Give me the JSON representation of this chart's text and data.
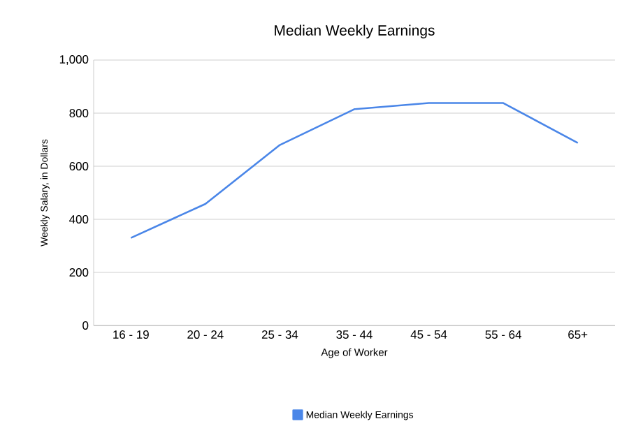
{
  "chart_data": {
    "type": "line",
    "title": "Median Weekly Earnings",
    "xlabel": "Age of Worker",
    "ylabel": "Weekly Salary, in Dollars",
    "categories": [
      "16 - 19",
      "20 - 24",
      "25 - 34",
      "35 - 44",
      "45 - 54",
      "55 - 64",
      "65+"
    ],
    "series": [
      {
        "name": "Median Weekly Earnings",
        "color": "#4a86e8",
        "values": [
          330,
          458,
          680,
          815,
          838,
          838,
          688
        ]
      }
    ],
    "ylim": [
      0,
      1000
    ],
    "yticks": [
      0,
      200,
      400,
      600,
      800,
      {
        "value": 1000,
        "label": "1,000"
      }
    ],
    "grid": "y",
    "legend": "bottom",
    "marker": "none",
    "line_style": "solid"
  }
}
